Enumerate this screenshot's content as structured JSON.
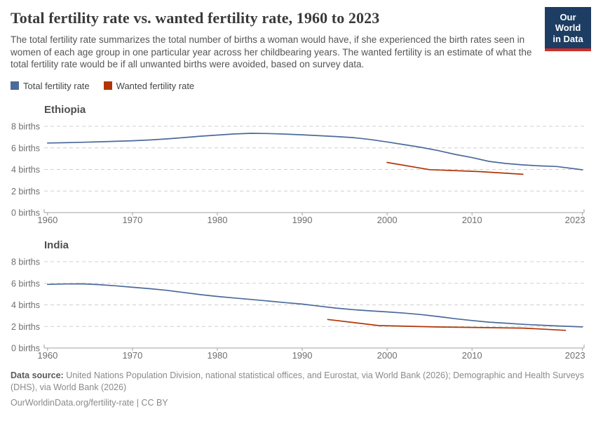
{
  "header": {
    "title": "Total fertility rate vs. wanted fertility rate, 1960 to 2023",
    "subtitle": "The total fertility rate summarizes the total number of births a woman would have, if she experienced the birth rates seen in women of each age group in one particular year across her childbearing years. The wanted fertility is an estimate of what the total fertility rate would be if all unwanted births were avoided, based on survey data.",
    "logo": {
      "line1": "Our World",
      "line2": "in Data",
      "bg_color": "#1d3d63",
      "bar_color": "#cf2e28"
    }
  },
  "legend": {
    "items": [
      {
        "label": "Total fertility rate",
        "color": "#4C6A9C"
      },
      {
        "label": "Wanted fertility rate",
        "color": "#B13507"
      }
    ]
  },
  "chart_data": [
    {
      "type": "line",
      "title": "Ethiopia",
      "xlabel": "",
      "ylabel": "",
      "x_ticks": [
        1960,
        1970,
        1980,
        1990,
        2000,
        2010,
        2023
      ],
      "y_ticks": [
        0,
        2,
        4,
        6,
        8
      ],
      "y_tick_format": "{v} births",
      "xlim": [
        1959.6,
        2023.2
      ],
      "ylim": [
        0,
        8
      ],
      "grid": "dashed",
      "legend_position": "top",
      "series": [
        {
          "name": "Total fertility rate",
          "color": "#4C6A9C",
          "points": [
            [
              1960,
              6.45
            ],
            [
              1962,
              6.48
            ],
            [
              1964,
              6.52
            ],
            [
              1966,
              6.56
            ],
            [
              1968,
              6.61
            ],
            [
              1970,
              6.66
            ],
            [
              1972,
              6.73
            ],
            [
              1974,
              6.83
            ],
            [
              1976,
              6.95
            ],
            [
              1978,
              7.08
            ],
            [
              1980,
              7.19
            ],
            [
              1982,
              7.29
            ],
            [
              1984,
              7.35
            ],
            [
              1986,
              7.33
            ],
            [
              1988,
              7.28
            ],
            [
              1990,
              7.21
            ],
            [
              1992,
              7.13
            ],
            [
              1994,
              7.05
            ],
            [
              1996,
              6.95
            ],
            [
              1998,
              6.78
            ],
            [
              2000,
              6.55
            ],
            [
              2002,
              6.3
            ],
            [
              2004,
              6.05
            ],
            [
              2006,
              5.75
            ],
            [
              2008,
              5.4
            ],
            [
              2010,
              5.1
            ],
            [
              2012,
              4.75
            ],
            [
              2014,
              4.55
            ],
            [
              2016,
              4.42
            ],
            [
              2018,
              4.33
            ],
            [
              2020,
              4.27
            ],
            [
              2023,
              3.97
            ]
          ]
        },
        {
          "name": "Wanted fertility rate",
          "color": "#B13507",
          "points": [
            [
              2000,
              4.65
            ],
            [
              2005,
              3.98
            ],
            [
              2011,
              3.8
            ],
            [
              2016,
              3.55
            ]
          ]
        }
      ]
    },
    {
      "type": "line",
      "title": "India",
      "xlabel": "",
      "ylabel": "",
      "x_ticks": [
        1960,
        1970,
        1980,
        1990,
        2000,
        2010,
        2023
      ],
      "y_ticks": [
        0,
        2,
        4,
        6,
        8
      ],
      "y_tick_format": "{v} births",
      "xlim": [
        1959.6,
        2023.2
      ],
      "ylim": [
        0,
        8
      ],
      "grid": "dashed",
      "legend_position": "top",
      "series": [
        {
          "name": "Total fertility rate",
          "color": "#4C6A9C",
          "points": [
            [
              1960,
              5.9
            ],
            [
              1962,
              5.94
            ],
            [
              1964,
              5.95
            ],
            [
              1966,
              5.88
            ],
            [
              1968,
              5.77
            ],
            [
              1970,
              5.63
            ],
            [
              1972,
              5.5
            ],
            [
              1974,
              5.35
            ],
            [
              1976,
              5.15
            ],
            [
              1978,
              4.95
            ],
            [
              1980,
              4.78
            ],
            [
              1982,
              4.64
            ],
            [
              1984,
              4.5
            ],
            [
              1986,
              4.36
            ],
            [
              1988,
              4.21
            ],
            [
              1990,
              4.07
            ],
            [
              1992,
              3.88
            ],
            [
              1994,
              3.7
            ],
            [
              1996,
              3.56
            ],
            [
              1998,
              3.45
            ],
            [
              2000,
              3.35
            ],
            [
              2002,
              3.24
            ],
            [
              2004,
              3.1
            ],
            [
              2006,
              2.92
            ],
            [
              2008,
              2.72
            ],
            [
              2010,
              2.55
            ],
            [
              2012,
              2.4
            ],
            [
              2014,
              2.3
            ],
            [
              2016,
              2.2
            ],
            [
              2018,
              2.12
            ],
            [
              2020,
              2.05
            ],
            [
              2023,
              1.96
            ]
          ]
        },
        {
          "name": "Wanted fertility rate",
          "color": "#B13507",
          "points": [
            [
              1993,
              2.65
            ],
            [
              1999,
              2.08
            ],
            [
              2006,
              1.95
            ],
            [
              2016,
              1.85
            ],
            [
              2021,
              1.64
            ]
          ]
        }
      ]
    }
  ],
  "footer": {
    "datasource_label": "Data source:",
    "datasource_text": " United Nations Population Division, national statistical offices, and Eurostat, via World Bank (2026); Demographic and Health Surveys (DHS), via World Bank (2026)",
    "license_link": "OurWorldinData.org/fertility-rate",
    "license_suffix": " | CC BY"
  },
  "style": {
    "grid_color": "#cfcfcf",
    "axis_color": "#a0a0a0",
    "tick_label_color": "#6f6f6f"
  }
}
